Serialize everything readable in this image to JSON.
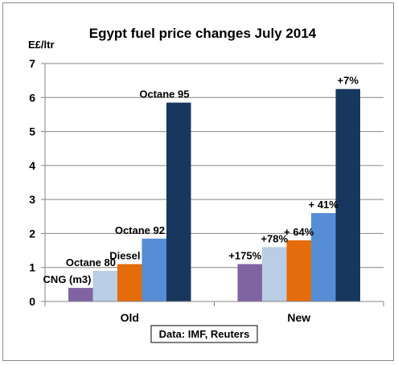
{
  "chart_data": {
    "type": "bar",
    "title": "Egypt fuel price changes July 2014",
    "ylabel": "E£/ltr",
    "ylim": [
      0,
      7
    ],
    "yticks": [
      "0",
      "1",
      "2",
      "3",
      "4",
      "5",
      "6",
      "7"
    ],
    "grid": true,
    "categories": [
      "Old",
      "New"
    ],
    "series": [
      {
        "name": "CNG (m3)",
        "color": "#8064A2",
        "values": [
          0.4,
          1.1
        ],
        "change": "+175%"
      },
      {
        "name": "Octane 80",
        "color": "#B9CDE5",
        "values": [
          0.9,
          1.6
        ],
        "change": "+78%"
      },
      {
        "name": "Diesel",
        "color": "#E46C0A",
        "values": [
          1.1,
          1.8
        ],
        "change": "+ 64%"
      },
      {
        "name": "Octane 92",
        "color": "#558ED5",
        "values": [
          1.85,
          2.6
        ],
        "change": "+ 41%"
      },
      {
        "name": "Octane 95",
        "color": "#17375E",
        "values": [
          5.85,
          6.25
        ],
        "change": "+7%"
      }
    ],
    "source": "Data: IMF, Reuters"
  }
}
